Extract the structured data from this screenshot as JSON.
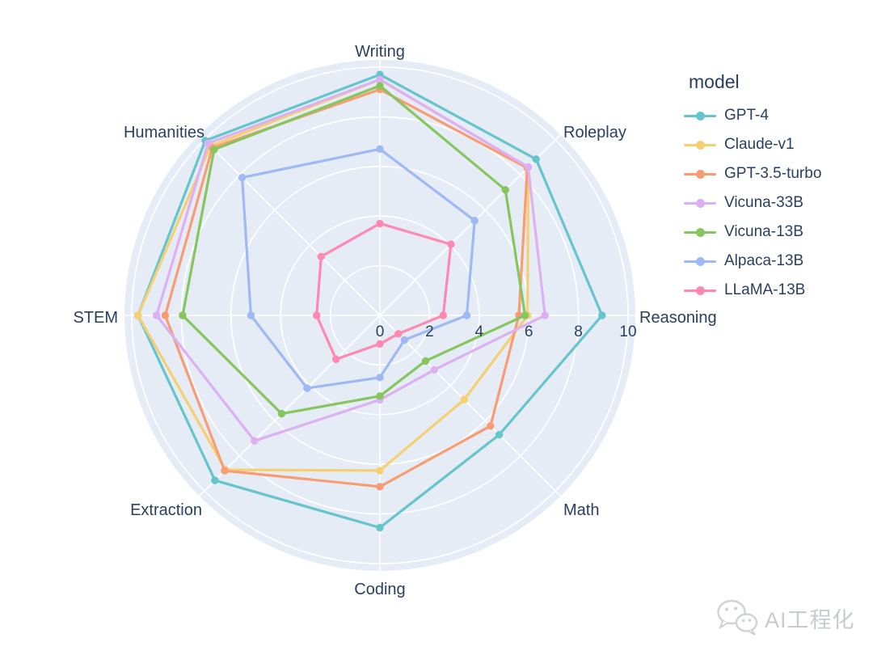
{
  "chart_data": {
    "type": "radar",
    "legend_title": "model",
    "categories": [
      "Writing",
      "Roleplay",
      "Reasoning",
      "Math",
      "Coding",
      "Extraction",
      "STEM",
      "Humanities"
    ],
    "radial_ticks": [
      0,
      2,
      4,
      6,
      8,
      10
    ],
    "radial_range": [
      0,
      10
    ],
    "grid": true,
    "legend_position": "right",
    "polar_bg_color": "#E5ECF6",
    "grid_color": "#FFFFFF",
    "text_color": "#2a3f5f",
    "series": [
      {
        "name": "GPT-4",
        "color": "#66C5CC",
        "values": [
          9.7,
          8.9,
          8.95,
          6.8,
          8.55,
          9.4,
          9.75,
          9.95
        ]
      },
      {
        "name": "Claude-v1",
        "color": "#F6CF71",
        "values": [
          9.5,
          8.45,
          5.95,
          4.8,
          6.25,
          8.8,
          9.75,
          9.65
        ]
      },
      {
        "name": "GPT-3.5-turbo",
        "color": "#F89C74",
        "values": [
          9.1,
          8.4,
          5.6,
          6.3,
          6.9,
          8.85,
          8.65,
          9.55
        ]
      },
      {
        "name": "Vicuna-33B",
        "color": "#DCB0F2",
        "values": [
          9.5,
          8.45,
          6.65,
          3.1,
          3.4,
          7.15,
          9.0,
          9.8
        ]
      },
      {
        "name": "Vicuna-13B",
        "color": "#87C55F",
        "values": [
          9.25,
          7.15,
          5.85,
          2.6,
          3.25,
          5.6,
          7.95,
          9.45
        ]
      },
      {
        "name": "Alpaca-13B",
        "color": "#9EB9F3",
        "values": [
          6.7,
          5.4,
          3.5,
          1.4,
          2.5,
          4.15,
          5.2,
          7.85
        ]
      },
      {
        "name": "LLaMA-13B",
        "color": "#FE88B1",
        "values": [
          3.7,
          4.05,
          2.55,
          1.05,
          1.15,
          2.5,
          2.55,
          3.35
        ]
      }
    ]
  },
  "watermark": {
    "text": "AI工程化",
    "icon": "wechat-logo-icon"
  }
}
